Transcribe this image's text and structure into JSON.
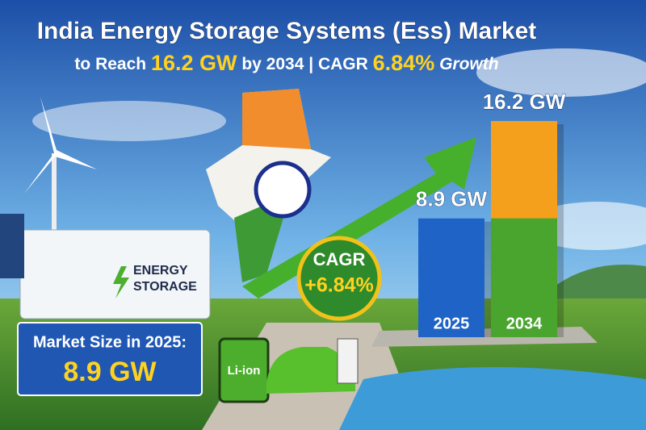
{
  "chart_data": {
    "type": "bar",
    "title": "India Energy Storage Systems (Ess) Market",
    "subtitle_parts": [
      "to Reach",
      "16.2 GW",
      "by 2034 |",
      "CAGR",
      "6.84%",
      "Growth"
    ],
    "categories": [
      "2025",
      "2034"
    ],
    "values": [
      8.9,
      16.2
    ],
    "value_labels": [
      "8.9 GW",
      "16.2 GW"
    ],
    "colors": [
      "#1f63c6",
      "#f5a01c"
    ],
    "cagr_badge": [
      "CAGR",
      "+6.84%"
    ],
    "market_box": [
      "Market Size in 2025:",
      "8.9 GW"
    ],
    "storage_label": [
      "ENERGY",
      "STORAGE"
    ],
    "battery_label": "Li-ion"
  }
}
